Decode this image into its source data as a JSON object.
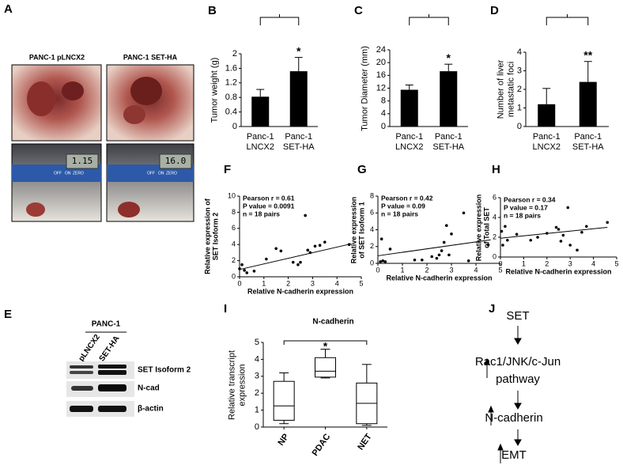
{
  "photo": {
    "panel": "A",
    "labels": [
      "PANC-1 pLNCX2",
      "PANC-1 SET-HA"
    ],
    "displays": [
      "1.15",
      "16.0"
    ],
    "buttons": [
      "OFF",
      "ON",
      "ZERO"
    ]
  },
  "blot": {
    "panel": "E",
    "cell_line": "PANC-1",
    "lanes": [
      "pLNCX2",
      "SET-HA"
    ],
    "rows": [
      "SET Isoform 2",
      "N-cad",
      "β-actin"
    ]
  },
  "pathway": {
    "panel": "J",
    "nodes": [
      "SET",
      "Rac1/JNK/c-Jun pathway",
      "N-cadherin",
      "EMT"
    ]
  },
  "chart_data": [
    {
      "panel": "B",
      "type": "bar",
      "y_label": "Tumor weight (g)",
      "categories": [
        "Panc-1 LNCX2",
        "Panc-1 SET-HA"
      ],
      "values": [
        0.82,
        1.52
      ],
      "errors": [
        0.2,
        0.38
      ],
      "significance": "*",
      "color": "#000000",
      "ylim": [
        0,
        2
      ],
      "yticks": [
        0,
        0.4,
        0.8,
        1.2,
        1.6,
        2
      ]
    },
    {
      "panel": "C",
      "type": "bar",
      "y_label": "Tumor Diameter (mm)",
      "categories": [
        "Panc-1 LNCX2",
        "Panc-1 SET-HA"
      ],
      "values": [
        11.5,
        17.3
      ],
      "errors": [
        1.5,
        2.2
      ],
      "significance": "*",
      "color": "#000000",
      "ylim": [
        0,
        24
      ],
      "yticks": [
        0,
        4,
        8,
        12,
        16,
        20,
        24
      ]
    },
    {
      "panel": "D",
      "type": "bar",
      "y_label": "Number of liver metastatic foci",
      "categories": [
        "Panc-1 LNCX2",
        "Panc-1 SET-HA"
      ],
      "values": [
        1.2,
        2.4
      ],
      "errors": [
        0.85,
        1.1
      ],
      "significance": "**",
      "color": "#000000",
      "ylim": [
        0,
        4
      ],
      "yticks": [
        0,
        1,
        2,
        3,
        4
      ]
    },
    {
      "panel": "F",
      "type": "scatter",
      "x_label": "Relative N-cadherin expression",
      "y_label": "Relative expression of SET Isoform 2",
      "annotations": [
        "Pearson r =  0.61",
        "P value = 0.0091",
        "n = 18 pairs"
      ],
      "x": [
        0.0,
        0.1,
        0.2,
        0.3,
        0.6,
        1.1,
        1.5,
        1.7,
        2.2,
        2.4,
        2.5,
        2.7,
        2.8,
        2.9,
        3.1,
        3.3,
        3.5,
        4.5
      ],
      "y": [
        1.0,
        1.5,
        0.8,
        0.5,
        0.7,
        2.2,
        3.5,
        3.2,
        1.8,
        1.5,
        1.8,
        7.6,
        3.3,
        3.0,
        3.8,
        3.9,
        4.3,
        4.0
      ],
      "fit": {
        "x": [
          0,
          4.6
        ],
        "y": [
          0.9,
          4.1
        ]
      },
      "color": "#000000",
      "xlim": [
        0,
        5
      ],
      "xticks": [
        0,
        1,
        2,
        3,
        4,
        5
      ],
      "ylim": [
        0,
        10
      ],
      "yticks": [
        0,
        2,
        4,
        6,
        8,
        10
      ]
    },
    {
      "panel": "G",
      "type": "scatter",
      "x_label": "Relative N-cadherin expression",
      "y_label": "Relative expression of SET Isoform 1",
      "annotations": [
        "Pearson r =  0.42",
        "P value = 0.09",
        "n = 18 pairs"
      ],
      "x": [
        0.1,
        0.15,
        0.2,
        0.3,
        0.5,
        1.5,
        1.8,
        2.2,
        2.4,
        2.5,
        2.6,
        2.7,
        2.8,
        2.9,
        3.0,
        3.5,
        3.7,
        4.5
      ],
      "y": [
        0.2,
        2.9,
        0.3,
        0.2,
        1.7,
        0.4,
        0.4,
        0.8,
        0.6,
        1.0,
        1.5,
        2.5,
        4.5,
        1.0,
        3.5,
        6.0,
        0.3,
        2.2
      ],
      "fit": {
        "x": [
          0,
          4.6
        ],
        "y": [
          0.9,
          2.8
        ]
      },
      "color": "#000000",
      "xlim": [
        0,
        5
      ],
      "xticks": [
        0,
        1,
        2,
        3,
        4,
        5
      ],
      "ylim": [
        0,
        8
      ],
      "yticks": [
        0,
        2,
        4,
        6,
        8
      ]
    },
    {
      "panel": "H",
      "type": "scatter",
      "x_label": "Relative N-cadherin expression",
      "y_label": "Relative expression of Total SET",
      "annotations": [
        "Pearson r =  0.34",
        "P value = 0.17",
        "n = 18 pairs"
      ],
      "x": [
        0.05,
        0.1,
        0.2,
        0.3,
        0.7,
        1.3,
        1.6,
        2.0,
        2.4,
        2.5,
        2.6,
        2.7,
        2.9,
        3.0,
        3.3,
        3.5,
        3.7,
        4.6
      ],
      "y": [
        2.6,
        1.2,
        3.1,
        1.7,
        2.3,
        1.7,
        2.0,
        2.4,
        3.0,
        2.8,
        1.6,
        2.2,
        5.0,
        1.2,
        0.7,
        2.5,
        3.1,
        3.5
      ],
      "fit": {
        "x": [
          0,
          4.6
        ],
        "y": [
          1.9,
          3.0
        ]
      },
      "color": "#000000",
      "xlim": [
        0,
        5
      ],
      "xticks": [
        0,
        1,
        2,
        3,
        4,
        5
      ],
      "ylim": [
        0,
        6
      ],
      "yticks": [
        0,
        2,
        4,
        6
      ]
    },
    {
      "panel": "I",
      "type": "box",
      "title": "N-cadherin",
      "y_label": "Relative transcript expression",
      "categories": [
        "NP",
        "PDAC",
        "NET"
      ],
      "min": [
        0.2,
        2.9,
        0.1
      ],
      "q1": [
        0.4,
        2.95,
        0.2
      ],
      "median": [
        1.25,
        3.3,
        1.4
      ],
      "q3": [
        2.7,
        4.1,
        2.6
      ],
      "max": [
        3.2,
        4.6,
        3.7
      ],
      "significance": "*",
      "ylim": [
        0,
        5
      ],
      "yticks": [
        0,
        1,
        2,
        3,
        4,
        5
      ]
    }
  ]
}
